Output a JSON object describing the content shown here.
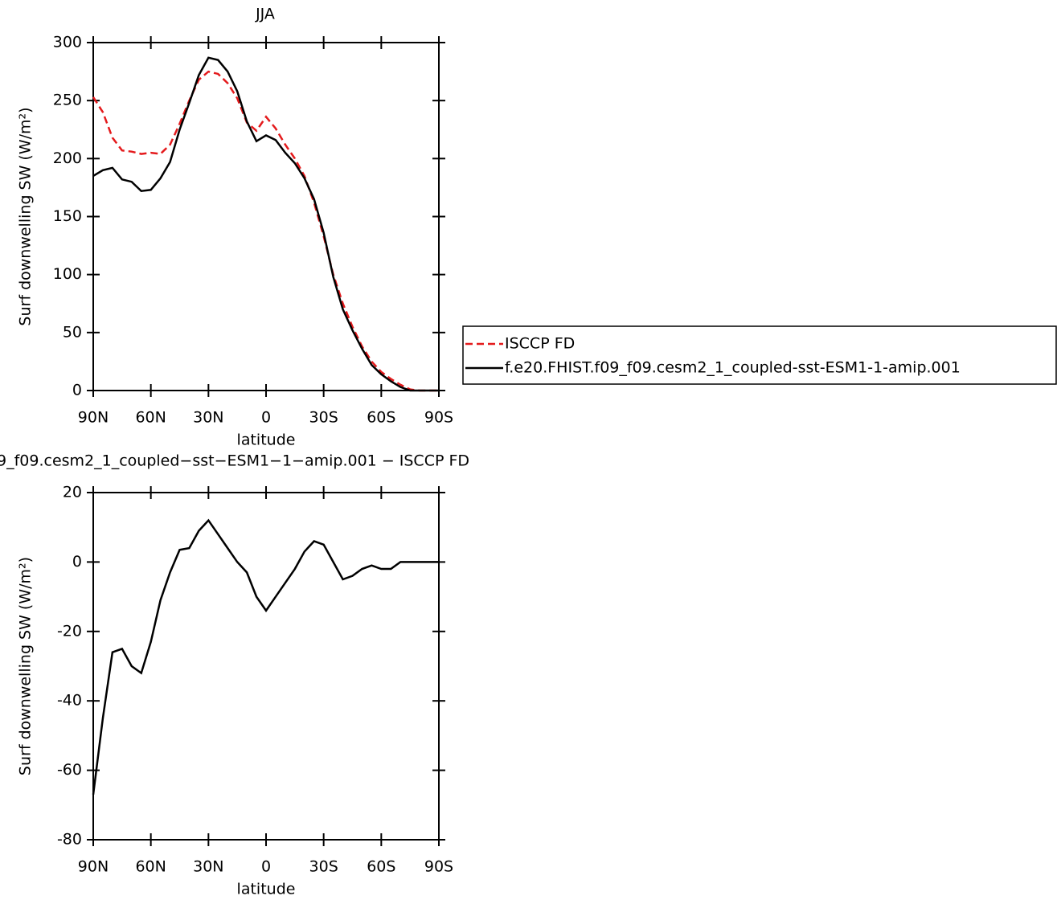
{
  "chart_data": [
    {
      "type": "line",
      "title": "JJA",
      "xlabel": "latitude",
      "ylabel": "Surf downwelling SW (W/m²)",
      "x": [
        90,
        85,
        80,
        75,
        70,
        65,
        60,
        55,
        50,
        45,
        40,
        35,
        30,
        25,
        20,
        15,
        10,
        5,
        0,
        -5,
        -10,
        -15,
        -20,
        -25,
        -30,
        -35,
        -40,
        -45,
        -50,
        -55,
        -60,
        -65,
        -70,
        -75,
        -80,
        -85,
        -90
      ],
      "xlim": [
        90,
        -90
      ],
      "xticks": [
        {
          "value": 90,
          "label": "90N"
        },
        {
          "value": 60,
          "label": "60N"
        },
        {
          "value": 30,
          "label": "30N"
        },
        0,
        {
          "value": -30,
          "label": "30S"
        },
        {
          "value": -60,
          "label": "60S"
        },
        {
          "value": -90,
          "label": "90S"
        }
      ],
      "ylim": [
        0,
        300
      ],
      "yticks": [
        0,
        50,
        100,
        150,
        200,
        250,
        300
      ],
      "legend": "right",
      "series": [
        {
          "name": "ISCCP FD",
          "color": "#e41a1c",
          "dash": true,
          "values": [
            253,
            240,
            218,
            207,
            206,
            204,
            205,
            204,
            212,
            230,
            250,
            268,
            275,
            273,
            265,
            252,
            231,
            224,
            236,
            226,
            212,
            200,
            185,
            162,
            133,
            100,
            75,
            55,
            38,
            25,
            16,
            10,
            5,
            1,
            0,
            0,
            0
          ]
        },
        {
          "name": "f.e20.FHIST.f09_f09.cesm2_1_coupled-sst-ESM1-1-amip.001",
          "color": "#000000",
          "dash": false,
          "values": [
            185,
            190,
            192,
            182,
            180,
            172,
            173,
            183,
            197,
            225,
            248,
            272,
            287,
            285,
            275,
            258,
            232,
            215,
            220,
            216,
            205,
            196,
            183,
            165,
            136,
            98,
            70,
            52,
            36,
            22,
            14,
            8,
            3,
            0,
            0,
            0,
            0
          ]
        }
      ]
    },
    {
      "type": "line",
      "title": "9_f09.cesm2_1_coupled−sst−ESM1−1−amip.001 − ISCCP FD",
      "xlabel": "latitude",
      "ylabel": "Surf downwelling SW (W/m²)",
      "x": [
        90,
        85,
        80,
        75,
        70,
        65,
        60,
        55,
        50,
        45,
        40,
        35,
        30,
        25,
        20,
        15,
        10,
        5,
        0,
        -5,
        -10,
        -15,
        -20,
        -25,
        -30,
        -35,
        -40,
        -45,
        -50,
        -55,
        -60,
        -65,
        -70,
        -75,
        -80,
        -85,
        -90
      ],
      "xlim": [
        90,
        -90
      ],
      "xticks": [
        {
          "value": 90,
          "label": "90N"
        },
        {
          "value": 60,
          "label": "60N"
        },
        {
          "value": 30,
          "label": "30N"
        },
        0,
        {
          "value": -30,
          "label": "30S"
        },
        {
          "value": -60,
          "label": "60S"
        },
        {
          "value": -90,
          "label": "90S"
        }
      ],
      "ylim": [
        -80,
        20
      ],
      "yticks": [
        -80,
        -60,
        -40,
        -20,
        0,
        20
      ],
      "color": "#000000",
      "values": [
        -67,
        -45,
        -26,
        -25,
        -30,
        -32,
        -23,
        -11,
        -3,
        3.5,
        4,
        9,
        12,
        8,
        4,
        0,
        -3,
        -10,
        -14,
        -10,
        -6,
        -2,
        3,
        6,
        5,
        0,
        -5,
        -4,
        -2,
        -1,
        -2,
        -2,
        0,
        0,
        0,
        0,
        0
      ]
    }
  ]
}
